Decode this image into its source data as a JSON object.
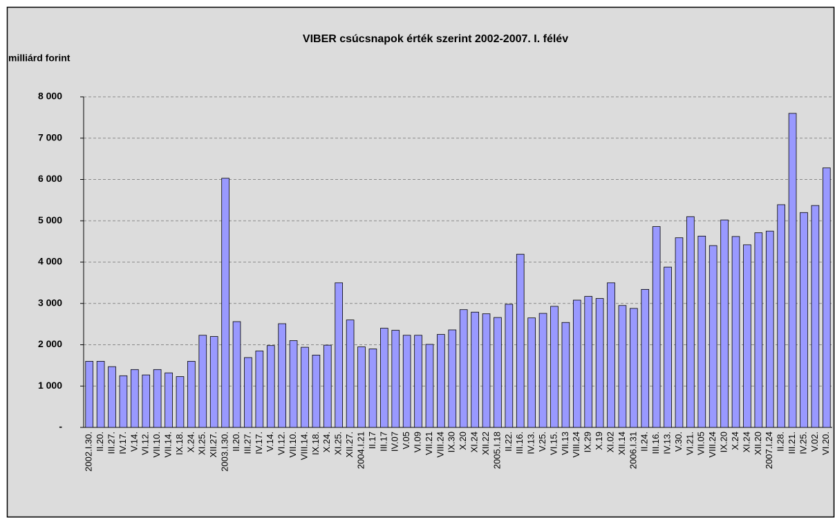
{
  "chart_data": {
    "type": "bar",
    "title": "VIBER csúcsnapok érték szerint 2002-2007. I. félév",
    "y_label": "milliárd forint",
    "categories": [
      "2002.I.30.",
      "II.20.",
      "III.27.",
      "IV.17.",
      "V.14.",
      "VI.12.",
      "VII.10.",
      "VII.14.",
      "IX.18.",
      "X.24.",
      "XI.25.",
      "XII.27.",
      "2003.I.30.",
      "II.20.",
      "III.27.",
      "IV.17.",
      "V.14.",
      "VI.12.",
      "VII.10.",
      "VIII.14.",
      "IX.18.",
      "X.24.",
      "XI.25.",
      "XII.27.",
      "2004.I.21",
      "II.17",
      "III.17",
      "IV.07",
      "V.05",
      "VI.09",
      "VII.21",
      "VIII.24",
      "IX.30",
      "X.20",
      "XI.24",
      "XII.22",
      "2005.I.18",
      "II.22.",
      "III.16.",
      "IV.13.",
      "V.25.",
      "VI.15.",
      "VII.13",
      "VIII.24",
      "IX.29",
      "X.19",
      "XI.02",
      "XII.14",
      "2006.I.31",
      "II.24.",
      "III.16.",
      "IV.13.",
      "V.30.",
      "VI.21.",
      "VII.05",
      "VIII.24",
      "IX.20",
      "X.24",
      "XI.24",
      "XII.20",
      "2007.I.24",
      "II.28.",
      "III.21.",
      "IV.25.",
      "V.02.",
      "VI.20."
    ],
    "values": [
      1600,
      1600,
      1470,
      1250,
      1400,
      1270,
      1400,
      1320,
      1230,
      1600,
      2230,
      2200,
      6030,
      2560,
      1690,
      1850,
      1980,
      2510,
      2100,
      1940,
      1750,
      1990,
      3500,
      2600,
      1950,
      1900,
      2400,
      2350,
      2230,
      2230,
      2010,
      2250,
      2360,
      2850,
      2790,
      2750,
      2660,
      2980,
      4190,
      2650,
      2760,
      2930,
      2540,
      3080,
      3170,
      3120,
      3500,
      2950,
      2880,
      3340,
      4860,
      3880,
      4590,
      5100,
      4630,
      4400,
      5020,
      4620,
      4420,
      4710,
      4750,
      5390,
      7600,
      5200,
      5370,
      6280
    ],
    "color": "#9999ff",
    "ylim": [
      0,
      8000
    ],
    "yticks": [
      {
        "value": 0,
        "label": "-"
      },
      {
        "value": 1000,
        "label": "1 000"
      },
      {
        "value": 2000,
        "label": "2 000"
      },
      {
        "value": 3000,
        "label": "3 000"
      },
      {
        "value": 4000,
        "label": "4 000"
      },
      {
        "value": 5000,
        "label": "5 000"
      },
      {
        "value": 6000,
        "label": "6 000"
      },
      {
        "value": 7000,
        "label": "7 000"
      },
      {
        "value": 8000,
        "label": "8 000"
      }
    ],
    "grid": true
  }
}
